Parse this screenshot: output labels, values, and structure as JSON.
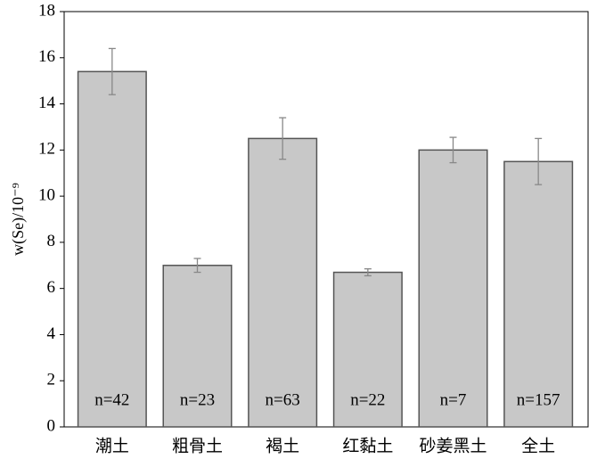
{
  "chart_data": {
    "type": "bar",
    "ylabel": "w(Se)/10⁻⁹",
    "categories": [
      "潮土",
      "粗骨土",
      "褐土",
      "红黏土",
      "砂姜黑土",
      "全土"
    ],
    "values": [
      15.4,
      7.0,
      12.5,
      6.7,
      12.0,
      11.5
    ],
    "errors": [
      1.0,
      0.3,
      0.9,
      0.15,
      0.55,
      1.0
    ],
    "annotations": [
      "n=42",
      "n=23",
      "n=63",
      "n=22",
      "n=7",
      "n=157"
    ],
    "color": "#c8c8c8",
    "ylim": [
      0,
      18
    ],
    "yticks": [
      0,
      2,
      4,
      6,
      8,
      10,
      12,
      14,
      16,
      18
    ],
    "grid": false
  }
}
